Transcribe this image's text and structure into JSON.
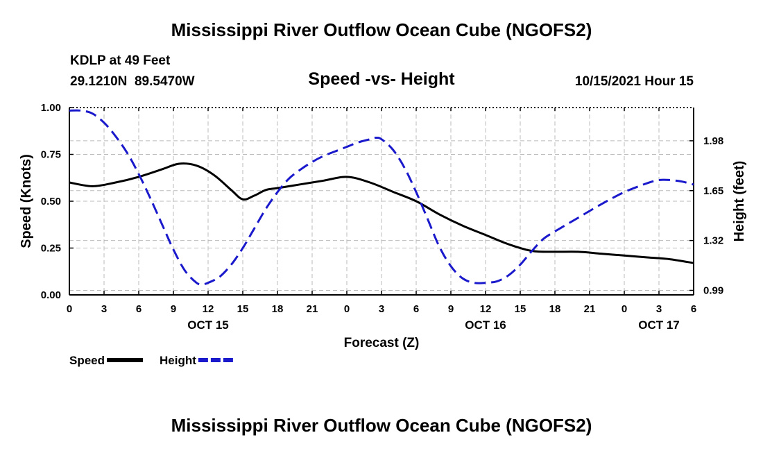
{
  "header": {
    "title": "Mississippi River Outflow Ocean Cube (NGOFS2)",
    "station": "KDLP at 49 Feet",
    "coords": "29.1210N  89.5470W",
    "subtitle": "Speed -vs- Height",
    "datetime": "10/15/2021 Hour 15"
  },
  "footer": {
    "title": "Mississippi River Outflow Ocean Cube (NGOFS2)"
  },
  "colors": {
    "speed": "#000000",
    "height": "#1a1acc",
    "grid": "#bbbbbb"
  },
  "chart_data": {
    "type": "line",
    "xlabel": "Forecast (Z)",
    "ylabel_left": "Speed (Knots)",
    "ylabel_right": "Height (feet)",
    "x_range": [
      0,
      54
    ],
    "x_ticks": [
      {
        "x": 0,
        "label": "0"
      },
      {
        "x": 3,
        "label": "3"
      },
      {
        "x": 6,
        "label": "6"
      },
      {
        "x": 9,
        "label": "9"
      },
      {
        "x": 12,
        "label": "12"
      },
      {
        "x": 15,
        "label": "15"
      },
      {
        "x": 18,
        "label": "18"
      },
      {
        "x": 21,
        "label": "21"
      },
      {
        "x": 24,
        "label": "0"
      },
      {
        "x": 27,
        "label": "3"
      },
      {
        "x": 30,
        "label": "6"
      },
      {
        "x": 33,
        "label": "9"
      },
      {
        "x": 36,
        "label": "12"
      },
      {
        "x": 39,
        "label": "15"
      },
      {
        "x": 42,
        "label": "18"
      },
      {
        "x": 45,
        "label": "21"
      },
      {
        "x": 48,
        "label": "0"
      },
      {
        "x": 51,
        "label": "3"
      },
      {
        "x": 54,
        "label": "6"
      }
    ],
    "date_labels": [
      {
        "x": 12,
        "label": "OCT 15"
      },
      {
        "x": 36,
        "label": "OCT 16"
      },
      {
        "x": 51,
        "label": "OCT 17"
      }
    ],
    "y_left": {
      "range": [
        0,
        1
      ],
      "ticks": [
        0,
        0.25,
        0.5,
        0.75,
        1.0
      ],
      "tick_labels": [
        "0.00",
        "0.25",
        "0.50",
        "0.75",
        "1.00"
      ]
    },
    "y_right": {
      "range": [
        0.96,
        2.2
      ],
      "ticks": [
        0.99,
        1.32,
        1.65,
        1.98
      ],
      "tick_labels": [
        "0.99",
        "1.32",
        "1.65",
        "1.98"
      ]
    },
    "legend": [
      {
        "name": "Speed",
        "style": "solid"
      },
      {
        "name": "Height",
        "style": "dashed"
      }
    ],
    "series": [
      {
        "name": "Speed",
        "axis": "left",
        "style": "solid",
        "x": [
          0,
          2,
          4,
          6,
          8,
          9.5,
          11,
          12.5,
          14,
          15,
          16,
          17,
          18,
          20,
          22,
          24,
          26,
          28,
          30,
          32,
          34,
          36,
          38,
          40,
          42,
          44,
          46,
          48,
          50,
          52,
          54
        ],
        "y": [
          0.6,
          0.58,
          0.6,
          0.63,
          0.67,
          0.7,
          0.69,
          0.64,
          0.56,
          0.51,
          0.53,
          0.56,
          0.57,
          0.59,
          0.61,
          0.63,
          0.6,
          0.55,
          0.5,
          0.43,
          0.37,
          0.32,
          0.27,
          0.235,
          0.23,
          0.23,
          0.22,
          0.21,
          0.2,
          0.19,
          0.17
        ]
      },
      {
        "name": "Height",
        "axis": "right",
        "style": "dashed",
        "x": [
          0,
          1,
          2,
          3,
          4,
          5,
          6,
          7,
          8,
          9,
          10,
          11,
          11.5,
          12,
          13,
          14,
          15,
          16,
          17,
          18,
          19,
          20,
          21,
          22,
          23,
          24,
          25,
          26,
          26.5,
          27,
          28,
          29,
          30,
          31,
          32,
          33,
          34,
          35,
          36,
          37,
          38,
          39,
          40,
          41,
          42,
          44,
          46,
          48,
          50,
          51,
          52,
          53,
          54
        ],
        "y": [
          2.18,
          2.18,
          2.16,
          2.1,
          2.01,
          1.9,
          1.76,
          1.6,
          1.43,
          1.26,
          1.12,
          1.04,
          1.03,
          1.04,
          1.08,
          1.16,
          1.27,
          1.4,
          1.53,
          1.64,
          1.73,
          1.79,
          1.84,
          1.88,
          1.91,
          1.94,
          1.97,
          1.99,
          2.0,
          1.99,
          1.92,
          1.8,
          1.64,
          1.46,
          1.28,
          1.15,
          1.07,
          1.04,
          1.04,
          1.05,
          1.09,
          1.16,
          1.25,
          1.33,
          1.38,
          1.47,
          1.56,
          1.64,
          1.7,
          1.72,
          1.72,
          1.71,
          1.69
        ]
      }
    ]
  }
}
